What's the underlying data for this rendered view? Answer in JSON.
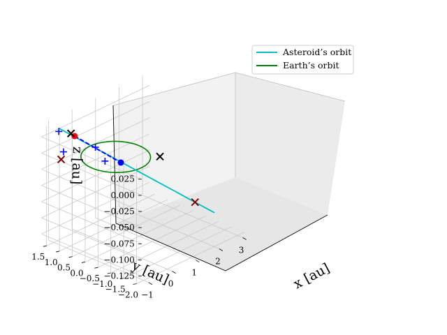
{
  "chart_data": {
    "type": "3d-line",
    "title": "",
    "xlabel": "x [au]",
    "ylabel": "y [au]",
    "zlabel": "z [au]",
    "x_ticks": [
      "−1",
      "0",
      "1",
      "2",
      "3"
    ],
    "y_ticks": [
      "1.5",
      "1.0",
      "0.5",
      "0.0",
      "−0.5",
      "−1.0",
      "−1.5",
      "−2.0"
    ],
    "z_ticks": [
      "0.025",
      "0.000",
      "−0.025",
      "−0.050",
      "−0.075",
      "−0.100",
      "−0.125"
    ],
    "xlim": [
      -1.3,
      3.3
    ],
    "ylim": [
      -2.2,
      1.7
    ],
    "zlim": [
      -0.14,
      0.045
    ],
    "grid": true,
    "legend_position": "top-right",
    "series": [
      {
        "name": "Asteroid’s orbit",
        "color": "#00bfbf",
        "style": "solid",
        "x": [
          -1.0,
          -0.5,
          0.0,
          0.5,
          1.0,
          1.5,
          2.0,
          2.5,
          3.0
        ],
        "y": [
          1.3,
          1.0,
          0.7,
          0.4,
          0.1,
          -0.2,
          -0.5,
          -0.8,
          -1.1
        ],
        "z": [
          0.04,
          0.02,
          0.0,
          -0.02,
          -0.04,
          -0.06,
          -0.08,
          -0.1,
          -0.12
        ]
      },
      {
        "name": "Earth’s orbit",
        "color": "#008000",
        "style": "solid",
        "shape": "circle",
        "radius_au": 1.0,
        "z": 0.0
      }
    ],
    "markers": [
      {
        "symbol": "dot",
        "color": "#ff0000",
        "x": -0.6,
        "y": 1.05,
        "z": 0.025
      },
      {
        "symbol": "dot",
        "color": "#0000ff",
        "x": 0.6,
        "y": 0.35,
        "z": -0.025
      },
      {
        "symbol": "cross",
        "color": "#000000",
        "x": -0.7,
        "y": 1.1,
        "z": 0.03
      },
      {
        "symbol": "cross",
        "color": "#000000",
        "x": 0.9,
        "y": -0.9,
        "z": 0.0
      },
      {
        "symbol": "cross",
        "color": "#800000",
        "x": -0.9,
        "y": 1.3,
        "z": -0.01
      },
      {
        "symbol": "cross",
        "color": "#800000",
        "x": 2.5,
        "y": -0.8,
        "z": -0.1
      },
      {
        "symbol": "plus",
        "color": "#0000ff",
        "x": -1.0,
        "y": 1.3,
        "z": 0.035
      },
      {
        "symbol": "plus",
        "color": "#0000ff",
        "x": -0.8,
        "y": 1.3,
        "z": 0.0
      },
      {
        "symbol": "plus",
        "color": "#0000ff",
        "x": -0.1,
        "y": 0.7,
        "z": 0.005
      },
      {
        "symbol": "plus",
        "color": "#0000ff",
        "x": 0.2,
        "y": 0.6,
        "z": -0.02
      }
    ],
    "dashed_segment": {
      "color": "#0000ff",
      "from": [
        -0.6,
        1.05,
        0.025
      ],
      "to": [
        0.6,
        0.35,
        -0.025
      ]
    }
  }
}
